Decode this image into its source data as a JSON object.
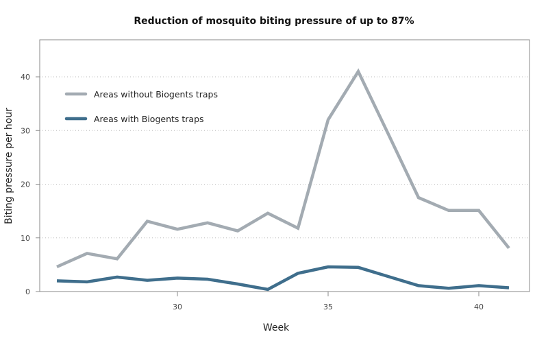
{
  "chart_data": {
    "type": "line",
    "title": "Reduction of mosquito biting pressure of up to 87%",
    "xlabel": "Week",
    "ylabel": "Biting pressure per hour",
    "xlim": [
      25.5,
      42
    ],
    "ylim": [
      0,
      40
    ],
    "x_ticks": [
      30,
      35,
      40
    ],
    "y_ticks": [
      0,
      10,
      20,
      30,
      40
    ],
    "grid": "horizontal-dotted",
    "legend_position": "top-left",
    "x": [
      26,
      27,
      28,
      29,
      30,
      31,
      32,
      33,
      34,
      35,
      36,
      37,
      38,
      39,
      40,
      41
    ],
    "series": [
      {
        "name": "Areas without Biogents traps",
        "color": "#a3abb2",
        "values": [
          4.6,
          7.1,
          6.1,
          13.1,
          11.6,
          12.8,
          11.3,
          14.6,
          11.8,
          32.0,
          41.0,
          29.3,
          17.5,
          15.1,
          15.1,
          8.1
        ]
      },
      {
        "name": "Areas with Biogents traps",
        "color": "#3f6e8c",
        "values": [
          2.0,
          1.8,
          2.7,
          2.1,
          2.5,
          2.3,
          1.4,
          0.4,
          3.4,
          4.6,
          4.5,
          2.8,
          1.1,
          0.6,
          1.1,
          0.7
        ]
      }
    ]
  }
}
